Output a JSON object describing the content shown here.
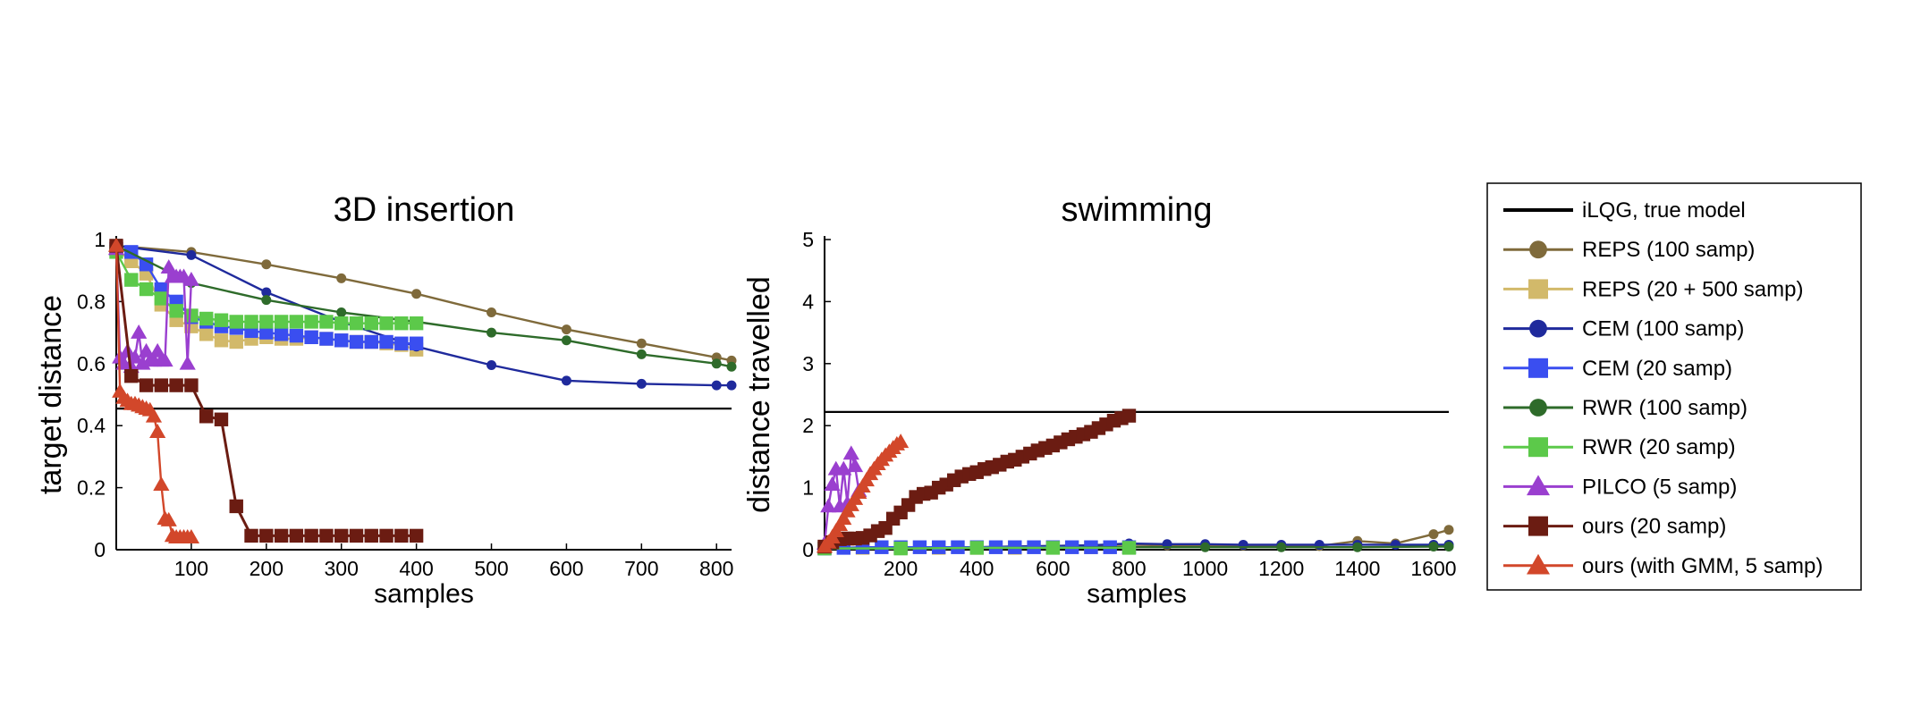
{
  "legend_entries": [
    {
      "label": "iLQG, true model",
      "color": "#000000",
      "marker": "none"
    },
    {
      "label": "REPS (100 samp)",
      "color": "#7f6a3b",
      "marker": "circle"
    },
    {
      "label": "REPS (20 + 500 samp)",
      "color": "#d2b96a",
      "marker": "square"
    },
    {
      "label": "CEM (100 samp)",
      "color": "#1f2a9c",
      "marker": "circle"
    },
    {
      "label": "CEM (20 samp)",
      "color": "#3a4ef0",
      "marker": "square"
    },
    {
      "label": "RWR (100 samp)",
      "color": "#2e6b2a",
      "marker": "circle"
    },
    {
      "label": "RWR (20 samp)",
      "color": "#5cc94a",
      "marker": "square"
    },
    {
      "label": "PILCO (5 samp)",
      "color": "#9a3fcf",
      "marker": "triangle"
    },
    {
      "label": "ours (20 samp)",
      "color": "#6b1c12",
      "marker": "square"
    },
    {
      "label": "ours (with GMM, 5 samp)",
      "color": "#d2472a",
      "marker": "triangle"
    }
  ],
  "chart_data": [
    {
      "type": "line",
      "title": "3D insertion",
      "xlabel": "samples",
      "ylabel": "target distance",
      "xlim": [
        0,
        820
      ],
      "ylim": [
        0,
        1
      ],
      "xticks": [
        100,
        200,
        300,
        400,
        500,
        600,
        700,
        800
      ],
      "yticks": [
        0,
        0.2,
        0.4,
        0.6,
        0.8,
        1
      ],
      "ytick_labels": [
        "0",
        "0.2",
        "0.4",
        "0.6",
        "0.8",
        "1"
      ],
      "grid": false,
      "series": [
        {
          "name": "iLQG, true model",
          "x": [
            0,
            820
          ],
          "y": [
            0.455,
            0.455
          ]
        },
        {
          "name": "REPS (100 samp)",
          "x": [
            0,
            100,
            200,
            300,
            400,
            500,
            600,
            700,
            800,
            820
          ],
          "y": [
            0.98,
            0.96,
            0.92,
            0.875,
            0.825,
            0.765,
            0.71,
            0.665,
            0.62,
            0.61
          ]
        },
        {
          "name": "REPS (20 + 500 samp)",
          "x": [
            0,
            20,
            40,
            60,
            80,
            100,
            120,
            140,
            160,
            180,
            200,
            220,
            240,
            260,
            280,
            300,
            320,
            340,
            360,
            380,
            400
          ],
          "y": [
            0.97,
            0.93,
            0.89,
            0.79,
            0.74,
            0.72,
            0.695,
            0.675,
            0.67,
            0.68,
            0.685,
            0.68,
            0.68,
            0.685,
            0.68,
            0.675,
            0.67,
            0.67,
            0.665,
            0.66,
            0.645
          ]
        },
        {
          "name": "CEM (100 samp)",
          "x": [
            0,
            100,
            200,
            300,
            400,
            500,
            600,
            700,
            800,
            820
          ],
          "y": [
            0.98,
            0.95,
            0.83,
            0.735,
            0.655,
            0.595,
            0.545,
            0.535,
            0.53,
            0.53
          ]
        },
        {
          "name": "CEM (20 samp)",
          "x": [
            0,
            20,
            40,
            60,
            80,
            100,
            120,
            140,
            160,
            180,
            200,
            220,
            240,
            260,
            280,
            300,
            320,
            340,
            360,
            380,
            400
          ],
          "y": [
            0.97,
            0.96,
            0.92,
            0.84,
            0.8,
            0.75,
            0.735,
            0.72,
            0.715,
            0.705,
            0.7,
            0.695,
            0.69,
            0.685,
            0.68,
            0.675,
            0.67,
            0.67,
            0.67,
            0.665,
            0.665
          ]
        },
        {
          "name": "RWR (100 samp)",
          "x": [
            0,
            100,
            200,
            300,
            400,
            500,
            600,
            700,
            800,
            820
          ],
          "y": [
            0.98,
            0.86,
            0.805,
            0.765,
            0.735,
            0.7,
            0.675,
            0.63,
            0.6,
            0.59
          ]
        },
        {
          "name": "RWR (20 samp)",
          "x": [
            0,
            20,
            40,
            60,
            80,
            100,
            120,
            140,
            160,
            180,
            200,
            220,
            240,
            260,
            280,
            300,
            320,
            340,
            360,
            380,
            400
          ],
          "y": [
            0.96,
            0.87,
            0.84,
            0.81,
            0.77,
            0.755,
            0.745,
            0.74,
            0.735,
            0.735,
            0.735,
            0.735,
            0.735,
            0.735,
            0.735,
            0.73,
            0.73,
            0.73,
            0.73,
            0.73,
            0.73
          ]
        },
        {
          "name": "PILCO (5 samp)",
          "x": [
            0,
            5,
            10,
            15,
            20,
            25,
            30,
            35,
            40,
            45,
            50,
            55,
            60,
            65,
            70,
            75,
            80,
            85,
            90,
            95,
            100
          ],
          "y": [
            0.97,
            0.62,
            0.6,
            0.64,
            0.59,
            0.62,
            0.7,
            0.6,
            0.64,
            0.61,
            0.61,
            0.64,
            0.61,
            0.61,
            0.91,
            0.88,
            0.88,
            0.88,
            0.88,
            0.6,
            0.87
          ]
        },
        {
          "name": "ours (20 samp)",
          "x": [
            0,
            20,
            40,
            60,
            80,
            100,
            120,
            140,
            160,
            180,
            200,
            220,
            240,
            260,
            280,
            300,
            320,
            340,
            360,
            380,
            400
          ],
          "y": [
            0.98,
            0.56,
            0.53,
            0.53,
            0.53,
            0.53,
            0.43,
            0.42,
            0.14,
            0.045,
            0.045,
            0.045,
            0.045,
            0.045,
            0.045,
            0.045,
            0.045,
            0.045,
            0.045,
            0.045,
            0.045
          ]
        },
        {
          "name": "ours (with GMM, 5 samp)",
          "x": [
            0,
            5,
            10,
            15,
            20,
            25,
            30,
            35,
            40,
            45,
            50,
            55,
            60,
            65,
            70,
            75,
            80,
            85,
            90,
            95,
            100
          ],
          "y": [
            0.98,
            0.51,
            0.49,
            0.48,
            0.47,
            0.47,
            0.465,
            0.46,
            0.455,
            0.45,
            0.43,
            0.38,
            0.21,
            0.1,
            0.095,
            0.045,
            0.04,
            0.04,
            0.04,
            0.04,
            0.04
          ]
        }
      ]
    },
    {
      "type": "line",
      "title": "swimming",
      "xlabel": "samples",
      "ylabel": "distance travelled",
      "xlim": [
        0,
        1640
      ],
      "ylim": [
        0,
        5
      ],
      "xticks": [
        200,
        400,
        600,
        800,
        1000,
        1200,
        1400,
        1600
      ],
      "yticks": [
        0,
        1,
        2,
        3,
        4,
        5
      ],
      "ytick_labels": [
        "0",
        "1",
        "2",
        "3",
        "4",
        "5"
      ],
      "grid": false,
      "series": [
        {
          "name": "iLQG, true model",
          "x": [
            0,
            1640
          ],
          "y": [
            2.22,
            2.22
          ]
        },
        {
          "name": "REPS (100 samp)",
          "x": [
            0,
            100,
            200,
            300,
            400,
            500,
            600,
            700,
            800,
            900,
            1000,
            1100,
            1200,
            1300,
            1400,
            1500,
            1600,
            1640
          ],
          "y": [
            0.02,
            0.03,
            0.03,
            0.04,
            0.04,
            0.05,
            0.06,
            0.07,
            0.08,
            0.07,
            0.06,
            0.07,
            0.06,
            0.06,
            0.14,
            0.1,
            0.25,
            0.32
          ]
        },
        {
          "name": "REPS (20 + 500 samp)",
          "x": [
            0,
            100,
            200,
            300,
            400,
            500,
            600,
            700,
            800
          ],
          "y": [
            0.02,
            0.03,
            0.03,
            0.03,
            0.03,
            0.03,
            0.04,
            0.04,
            0.04
          ]
        },
        {
          "name": "CEM (100 samp)",
          "x": [
            0,
            100,
            200,
            300,
            400,
            500,
            600,
            700,
            800,
            900,
            1000,
            1100,
            1200,
            1300,
            1400,
            1500,
            1600,
            1640
          ],
          "y": [
            0.02,
            0.03,
            0.03,
            0.04,
            0.04,
            0.05,
            0.06,
            0.07,
            0.1,
            0.09,
            0.09,
            0.08,
            0.08,
            0.08,
            0.08,
            0.08,
            0.08,
            0.08
          ]
        },
        {
          "name": "CEM (20 samp)",
          "x": [
            0,
            50,
            100,
            150,
            200,
            250,
            300,
            350,
            400,
            450,
            500,
            550,
            600,
            650,
            700,
            750,
            800
          ],
          "y": [
            0.02,
            0.03,
            0.04,
            0.04,
            0.04,
            0.04,
            0.04,
            0.04,
            0.04,
            0.04,
            0.04,
            0.04,
            0.04,
            0.04,
            0.04,
            0.04,
            0.04
          ]
        },
        {
          "name": "RWR (100 samp)",
          "x": [
            0,
            200,
            400,
            600,
            800,
            1000,
            1200,
            1400,
            1600,
            1640
          ],
          "y": [
            0.02,
            0.02,
            0.03,
            0.03,
            0.04,
            0.04,
            0.04,
            0.04,
            0.05,
            0.05
          ]
        },
        {
          "name": "RWR (20 samp)",
          "x": [
            0,
            200,
            400,
            600,
            800
          ],
          "y": [
            0.02,
            0.02,
            0.03,
            0.03,
            0.03
          ]
        },
        {
          "name": "PILCO (5 samp)",
          "x": [
            0,
            10,
            20,
            30,
            40,
            50,
            60,
            70,
            80,
            90
          ],
          "y": [
            0.1,
            0.7,
            1.05,
            1.3,
            0.7,
            1.3,
            0.75,
            1.55,
            1.35,
            0.95
          ]
        },
        {
          "name": "ours (20 samp)",
          "x": [
            0,
            20,
            40,
            60,
            80,
            100,
            120,
            140,
            160,
            180,
            200,
            220,
            240,
            260,
            280,
            300,
            320,
            340,
            360,
            380,
            400,
            420,
            440,
            460,
            480,
            500,
            520,
            540,
            560,
            580,
            600,
            620,
            640,
            660,
            680,
            700,
            720,
            740,
            760,
            780,
            800
          ],
          "y": [
            0.05,
            0.12,
            0.17,
            0.18,
            0.18,
            0.19,
            0.23,
            0.3,
            0.35,
            0.5,
            0.6,
            0.72,
            0.85,
            0.9,
            0.92,
            1.0,
            1.05,
            1.12,
            1.18,
            1.22,
            1.25,
            1.3,
            1.33,
            1.37,
            1.42,
            1.45,
            1.5,
            1.55,
            1.6,
            1.64,
            1.68,
            1.73,
            1.78,
            1.82,
            1.86,
            1.9,
            1.96,
            2.02,
            2.08,
            2.12,
            2.16
          ]
        },
        {
          "name": "ours (with GMM, 5 samp)",
          "x": [
            0,
            10,
            20,
            30,
            40,
            50,
            60,
            70,
            80,
            90,
            100,
            110,
            120,
            130,
            140,
            150,
            160,
            170,
            180,
            190,
            200
          ],
          "y": [
            0.05,
            0.12,
            0.2,
            0.3,
            0.4,
            0.5,
            0.62,
            0.72,
            0.82,
            0.92,
            1.02,
            1.12,
            1.22,
            1.3,
            1.38,
            1.45,
            1.52,
            1.58,
            1.64,
            1.7,
            1.74
          ]
        }
      ]
    }
  ]
}
